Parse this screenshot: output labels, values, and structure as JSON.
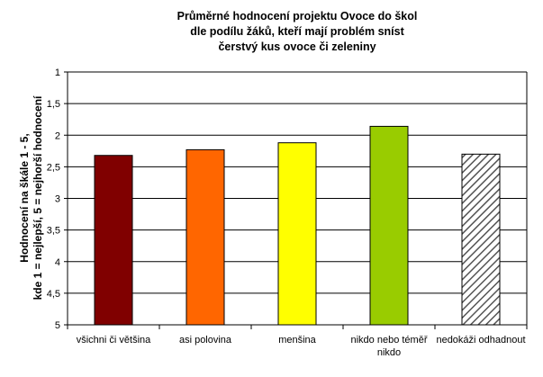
{
  "chart_data": {
    "type": "bar",
    "title_lines": [
      "Průměrné hodnocení projektu Ovoce do škol",
      "dle podílu žáků, kteří mají problém sníst",
      "čerstvý kus ovoce či zeleniny"
    ],
    "ylabel_lines": [
      "Hodnocení na škále 1 - 5,",
      "kde 1 = nejlepší, 5 = nejhorší hodnocení"
    ],
    "categories": [
      [
        "všichni či většina"
      ],
      [
        "asi polovina"
      ],
      [
        "menšina"
      ],
      [
        "nikdo nebo téměř",
        "nikdo"
      ],
      [
        "nedokáži odhadnout"
      ]
    ],
    "values": [
      2.32,
      2.23,
      2.12,
      1.86,
      2.3
    ],
    "colors": [
      "#800000",
      "#ff6600",
      "#ffff00",
      "#99cc00",
      "hatched"
    ],
    "ylim": [
      1,
      5
    ],
    "y_inverted": true,
    "yticks": [
      "1",
      "1,5",
      "2",
      "2,5",
      "3",
      "3,5",
      "4",
      "4,5",
      "5"
    ],
    "grid": true
  }
}
